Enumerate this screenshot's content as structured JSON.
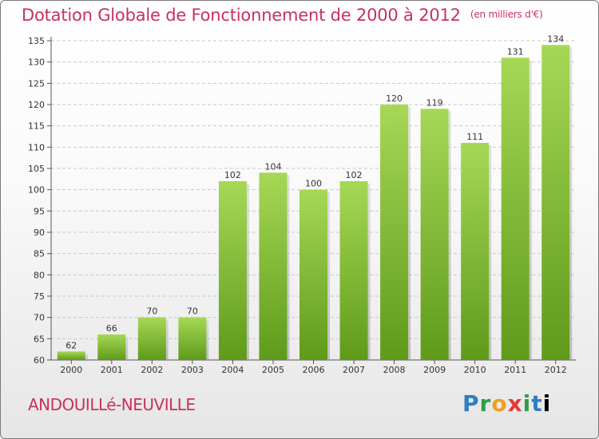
{
  "header": {
    "title": "Dotation Globale de Fonctionnement de 2000 à 2012",
    "unit": "(en milliers d'€)"
  },
  "footer": {
    "city": "ANDOUILLé-NEUVILLE",
    "logo_letters": [
      "P",
      "r",
      "o",
      "x",
      "i",
      "t",
      "i"
    ]
  },
  "chart_data": {
    "type": "bar",
    "title": "Dotation Globale de Fonctionnement de 2000 à 2012",
    "subtitle": "(en milliers d'€)",
    "categories": [
      "2000",
      "2001",
      "2002",
      "2003",
      "2004",
      "2005",
      "2006",
      "2007",
      "2008",
      "2009",
      "2010",
      "2011",
      "2012"
    ],
    "values": [
      62,
      66,
      70,
      70,
      102,
      104,
      100,
      102,
      120,
      119,
      111,
      131,
      134
    ],
    "ylim": [
      60,
      135
    ],
    "yticks": [
      60,
      65,
      70,
      75,
      80,
      85,
      90,
      95,
      100,
      105,
      110,
      115,
      120,
      125,
      130,
      135
    ],
    "grid": true,
    "colors": {
      "bar_light": "#a6d856",
      "bar_dark": "#5f9a1a",
      "grid": "#c8c8c8",
      "accent": "#c8325a"
    }
  }
}
